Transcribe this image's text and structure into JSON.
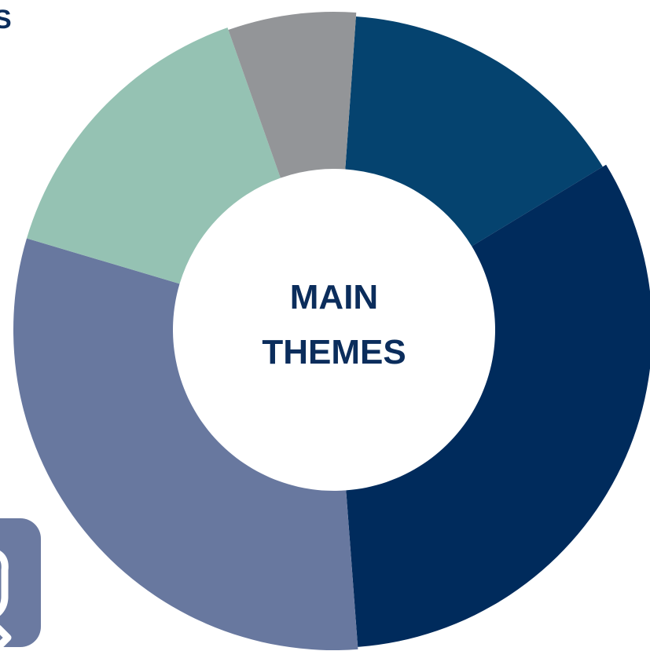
{
  "chart_data": {
    "type": "pie",
    "variant": "donut",
    "center_label_lines": [
      "MAIN",
      "THEMES"
    ],
    "slices": [
      {
        "share": 15.2,
        "color": "#05436f"
      },
      {
        "share": 32.5,
        "color": "#002b5c"
      },
      {
        "share": 30.8,
        "color": "#68789f"
      },
      {
        "share": 15.0,
        "color": "#95c2b3"
      },
      {
        "share": 6.5,
        "color": "#939598"
      }
    ],
    "title": "",
    "legend": "none"
  },
  "corner": {
    "partial_text": "S",
    "badge_icon": "wrench-icon",
    "badge_color": "#6b7aa1"
  }
}
